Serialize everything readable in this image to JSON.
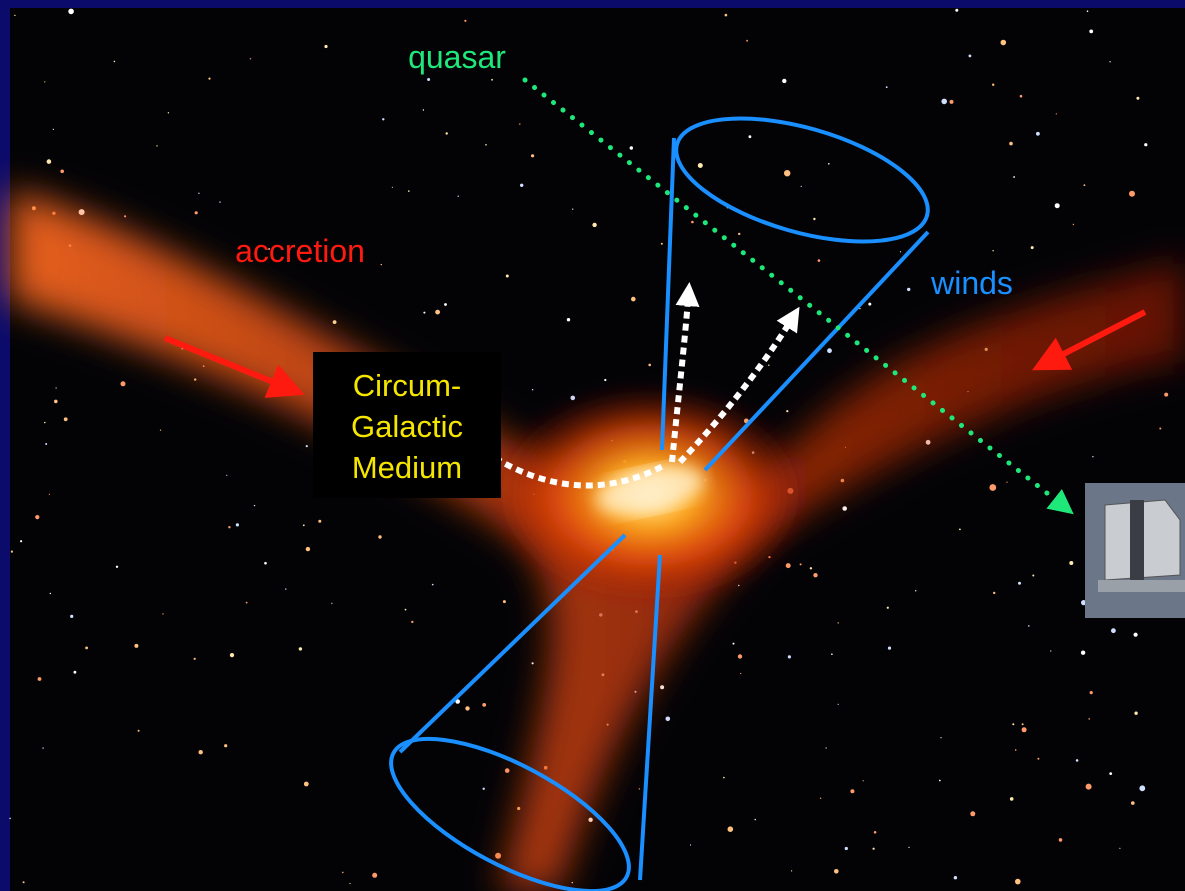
{
  "labels": {
    "quasar": "quasar",
    "accretion": "accretion",
    "winds": "winds"
  },
  "box": {
    "lines": [
      "Circum-",
      "Galactic",
      "Medium"
    ]
  }
}
